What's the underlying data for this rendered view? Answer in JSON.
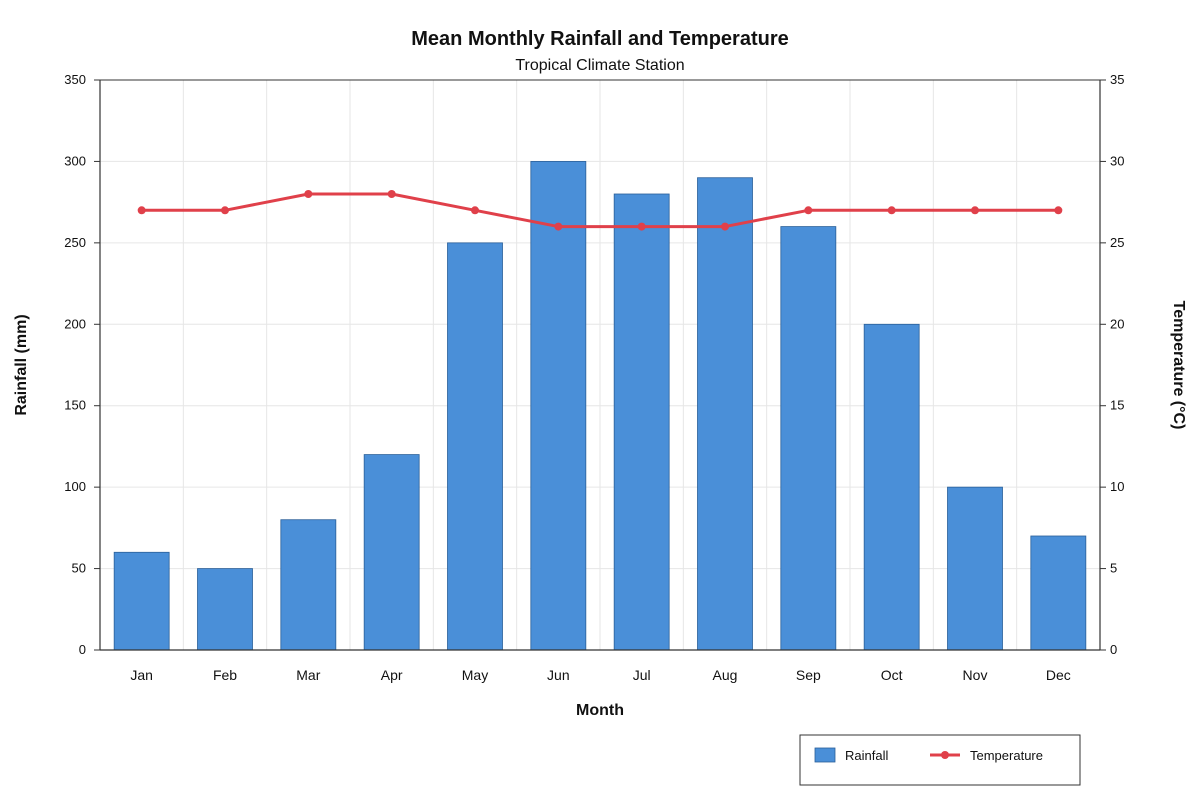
{
  "chart_data": {
    "type": "bar",
    "title": "Mean Monthly Rainfall and Temperature",
    "subtitle": "Tropical Climate Station",
    "xlabel": "Month",
    "ylabel": "Rainfall (mm)",
    "y2label": "Temperature (°C)",
    "categories": [
      "Jan",
      "Feb",
      "Mar",
      "Apr",
      "May",
      "Jun",
      "Jul",
      "Aug",
      "Sep",
      "Oct",
      "Nov",
      "Dec"
    ],
    "ylim": [
      0,
      350
    ],
    "y2lim": [
      0,
      35
    ],
    "yticks": [
      0,
      50,
      100,
      150,
      200,
      250,
      300,
      350
    ],
    "y2ticks": [
      0,
      5,
      10,
      15,
      20,
      25,
      30,
      35
    ],
    "grid": true,
    "legend_position": "bottom-right",
    "series": [
      {
        "name": "Rainfall",
        "type": "bar",
        "axis": "left",
        "color": "#4a8fd8",
        "values": [
          60,
          50,
          80,
          120,
          250,
          300,
          280,
          290,
          260,
          200,
          100,
          70
        ]
      },
      {
        "name": "Temperature",
        "type": "line",
        "axis": "right",
        "color": "#e0404a",
        "values": [
          27,
          27,
          28,
          28,
          27,
          26,
          26,
          26,
          27,
          27,
          27,
          27
        ]
      }
    ]
  }
}
